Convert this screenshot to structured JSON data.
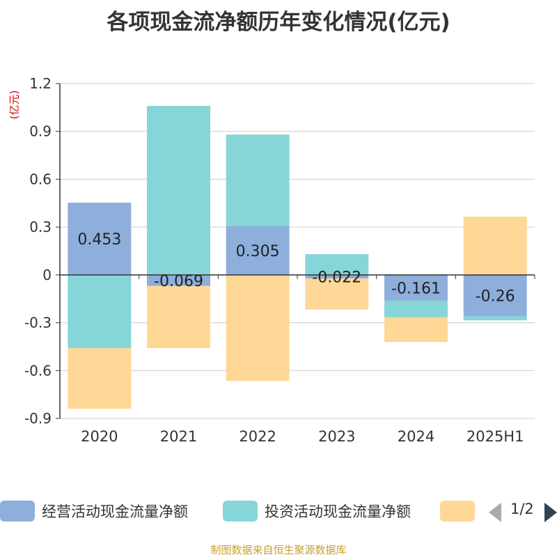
{
  "title": "各项现金流净额历年变化情况(亿元)",
  "y_unit": "(亿元)",
  "footer": "制图数据来自恒生聚源数据库",
  "legend": {
    "page": "1/2",
    "items": [
      {
        "label": "经营活动现金流量净额",
        "color": "#8eaedb"
      },
      {
        "label": "投资活动现金流量净额",
        "color": "#86d5d8"
      },
      {
        "label": "",
        "color": "#ffd797"
      }
    ]
  },
  "chart_data": {
    "type": "bar",
    "stacked": true,
    "categories": [
      "2020",
      "2021",
      "2022",
      "2023",
      "2024",
      "2025H1"
    ],
    "series": [
      {
        "name": "经营活动现金流量净额",
        "color": "#8eaedb",
        "values": [
          0.453,
          -0.069,
          0.305,
          -0.022,
          -0.161,
          -0.26
        ]
      },
      {
        "name": "投资活动现金流量净额",
        "color": "#86d5d8",
        "values": [
          -0.46,
          1.06,
          0.575,
          0.13,
          -0.105,
          -0.025
        ]
      },
      {
        "name": "",
        "color": "#ffd797",
        "values": [
          -0.38,
          -0.39,
          -0.665,
          -0.195,
          -0.155,
          0.365
        ]
      }
    ],
    "data_labels": [
      "0.453",
      "-0.069",
      "0.305",
      "-0.022",
      "-0.161",
      "-0.26"
    ],
    "yticks": [
      "1.2",
      "0.9",
      "0.6",
      "0.3",
      "0",
      "-0.3",
      "-0.6",
      "-0.9"
    ],
    "ylim": [
      -0.9,
      1.2
    ],
    "grid": true,
    "legend_position": "bottom"
  }
}
